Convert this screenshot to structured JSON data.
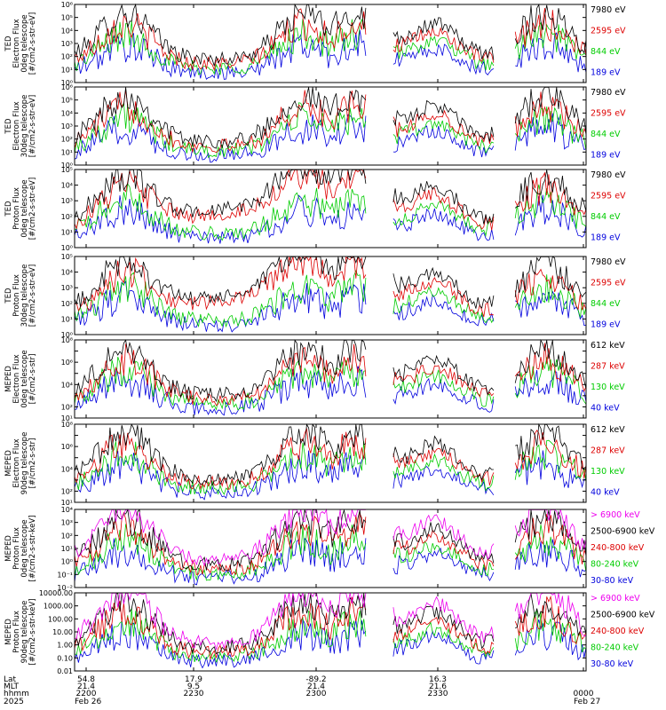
{
  "chart_data": {
    "type": "line",
    "time_axis": {
      "tick_times": [
        "2200",
        "2230",
        "2300",
        "2330",
        "0000"
      ],
      "Lat": [
        "54.8",
        "17.9",
        "-89.2",
        "16.3",
        ""
      ],
      "MLT": [
        "21.4",
        "9.5",
        "21.4",
        "21.6",
        ""
      ],
      "hhmm": [
        "2200",
        "2230",
        "2300",
        "2330",
        "0000"
      ],
      "date_start": "Feb 26",
      "date_end": "Feb 27",
      "row_labels": [
        "Lat",
        "MLT",
        "hhmm"
      ],
      "year": "2025"
    },
    "panels": [
      {
        "ylabel": [
          "TED",
          "Electron Flux",
          "0deg telescope",
          "[#/cm2-s-str-eV]"
        ],
        "yscale": "log",
        "ylim_exp": [
          0,
          6
        ],
        "tick_labels": [
          "10⁰",
          "10¹",
          "10²",
          "10³",
          "10⁴",
          "10⁵",
          "10⁶"
        ],
        "series": [
          {
            "name": "7980 eV",
            "color": "#000000"
          },
          {
            "name": "2595 eV",
            "color": "#dd0000"
          },
          {
            "name": "844 eV",
            "color": "#00cc00"
          },
          {
            "name": "189 eV",
            "color": "#0000dd"
          }
        ]
      },
      {
        "ylabel": [
          "TED",
          "Electron Flux",
          "30deg telescope",
          "[#/cm2-s-str-eV]"
        ],
        "yscale": "log",
        "ylim_exp": [
          0,
          6
        ],
        "tick_labels": [
          "10⁰",
          "10¹",
          "10²",
          "10³",
          "10⁴",
          "10⁵",
          "10⁶"
        ],
        "series": [
          {
            "name": "7980 eV",
            "color": "#000000"
          },
          {
            "name": "2595 eV",
            "color": "#dd0000"
          },
          {
            "name": "844 eV",
            "color": "#00cc00"
          },
          {
            "name": "189 eV",
            "color": "#0000dd"
          }
        ]
      },
      {
        "ylabel": [
          "TED",
          "Proton Flux",
          "0deg telescope",
          "[#/cm2-s-str-eV]"
        ],
        "yscale": "log",
        "ylim_exp": [
          0,
          5
        ],
        "tick_labels": [
          "10⁰",
          "10¹",
          "10²",
          "10³",
          "10⁴",
          "10⁵"
        ],
        "series": [
          {
            "name": "7980 eV",
            "color": "#000000"
          },
          {
            "name": "2595 eV",
            "color": "#dd0000"
          },
          {
            "name": "844 eV",
            "color": "#00cc00"
          },
          {
            "name": "189 eV",
            "color": "#0000dd"
          }
        ]
      },
      {
        "ylabel": [
          "TED",
          "Proton Flux",
          "30deg telescope",
          "[#/cm2-s-str-eV]"
        ],
        "yscale": "log",
        "ylim_exp": [
          0,
          5
        ],
        "tick_labels": [
          "10⁰",
          "10¹",
          "10²",
          "10³",
          "10⁴",
          "10⁵"
        ],
        "series": [
          {
            "name": "7980 eV",
            "color": "#000000"
          },
          {
            "name": "2595 eV",
            "color": "#dd0000"
          },
          {
            "name": "844 eV",
            "color": "#00cc00"
          },
          {
            "name": "189 eV",
            "color": "#0000dd"
          }
        ]
      },
      {
        "ylabel": [
          "MEPED",
          "Electron Flux",
          "0deg telescope",
          "[#/cm2-s-str]"
        ],
        "yscale": "log",
        "ylim_exp": [
          1,
          8
        ],
        "tick_labels": [
          "10¹",
          "10²",
          "",
          "10⁴",
          "",
          "10⁶",
          "",
          "10⁸"
        ],
        "series": [
          {
            "name": "612 keV",
            "color": "#000000"
          },
          {
            "name": "287 keV",
            "color": "#dd0000"
          },
          {
            "name": "130 keV",
            "color": "#00cc00"
          },
          {
            "name": "40 keV",
            "color": "#0000dd"
          }
        ]
      },
      {
        "ylabel": [
          "MEPED",
          "Electron Flux",
          "90deg telescope",
          "[#/cm2-s-str]"
        ],
        "yscale": "log",
        "ylim_exp": [
          1,
          8
        ],
        "tick_labels": [
          "10¹",
          "10²",
          "",
          "10⁴",
          "",
          "10⁶",
          "",
          "10⁸"
        ],
        "series": [
          {
            "name": "612 keV",
            "color": "#000000"
          },
          {
            "name": "287 keV",
            "color": "#dd0000"
          },
          {
            "name": "130 keV",
            "color": "#00cc00"
          },
          {
            "name": "40 keV",
            "color": "#0000dd"
          }
        ]
      },
      {
        "ylabel": [
          "MEPED",
          "Proton Flux",
          "0deg telescope",
          "[#/cm2-s-str-keV]"
        ],
        "yscale": "log",
        "ylim_exp": [
          -2,
          4
        ],
        "tick_labels": [
          "10⁻²",
          "10⁻¹",
          "10⁰",
          "10¹",
          "10²",
          "10³",
          "10⁴"
        ],
        "series": [
          {
            "name": "> 6900 keV",
            "color": "#ee00ee"
          },
          {
            "name": "2500-6900 keV",
            "color": "#000000"
          },
          {
            "name": "240-800 keV",
            "color": "#dd0000"
          },
          {
            "name": "80-240 keV",
            "color": "#00cc00"
          },
          {
            "name": "30-80 keV",
            "color": "#0000dd"
          }
        ]
      },
      {
        "ylabel": [
          "MEPED",
          "Proton Flux",
          "90deg telescope",
          "[#/cm2-s-str-keV]"
        ],
        "yscale": "log",
        "ylim_exp": [
          -2,
          4
        ],
        "tick_labels": [
          "0.01",
          "0.10",
          "1.00",
          "10.00",
          "100.00",
          "1000.00",
          "10000.00"
        ],
        "series": [
          {
            "name": "> 6900 keV",
            "color": "#ee00ee"
          },
          {
            "name": "2500-6900 keV",
            "color": "#000000"
          },
          {
            "name": "240-800 keV",
            "color": "#dd0000"
          },
          {
            "name": "80-240 keV",
            "color": "#00cc00"
          },
          {
            "name": "30-80 keV",
            "color": "#0000dd"
          }
        ]
      }
    ]
  }
}
